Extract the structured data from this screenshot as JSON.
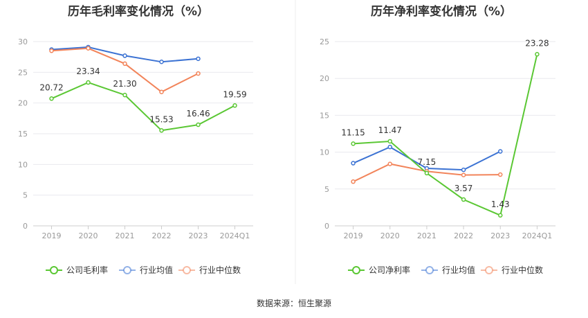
{
  "source": "数据来源：恒生聚源",
  "chart_data": [
    {
      "type": "line",
      "title": "历年毛利率变化情况（%）",
      "categories": [
        "2019",
        "2020",
        "2021",
        "2022",
        "2023",
        "2024Q1"
      ],
      "ylim": [
        0,
        30
      ],
      "yticks": [
        "0",
        "5",
        "10",
        "15",
        "20",
        "25",
        "30"
      ],
      "grid": true,
      "legend_position": "bottom",
      "series": [
        {
          "name": "公司毛利率",
          "color": "#5ac733",
          "values": [
            20.72,
            23.34,
            21.3,
            15.53,
            16.46,
            19.59
          ],
          "labels": [
            "20.72",
            "23.34",
            "21.30",
            "15.53",
            "16.46",
            "19.59"
          ]
        },
        {
          "name": "行业均值",
          "color": "#3b72d3",
          "values": [
            28.7,
            29.1,
            27.7,
            26.7,
            27.2,
            null
          ]
        },
        {
          "name": "行业中位数",
          "color": "#f2845a",
          "values": [
            28.5,
            28.9,
            26.4,
            21.8,
            24.8,
            null
          ]
        }
      ]
    },
    {
      "type": "line",
      "title": "历年净利率变化情况（%）",
      "categories": [
        "2019",
        "2020",
        "2021",
        "2022",
        "2023",
        "2024Q1"
      ],
      "ylim": [
        0,
        25
      ],
      "yticks": [
        "0",
        "5",
        "10",
        "15",
        "20",
        "25"
      ],
      "grid": true,
      "legend_position": "bottom",
      "series": [
        {
          "name": "公司净利率",
          "color": "#5ac733",
          "values": [
            11.15,
            11.47,
            7.15,
            3.57,
            1.43,
            23.28
          ],
          "labels": [
            "11.15",
            "11.47",
            "7.15",
            "3.57",
            "1.43",
            "23.28"
          ]
        },
        {
          "name": "行业均值",
          "color": "#3b72d3",
          "values": [
            8.5,
            10.7,
            7.8,
            7.6,
            10.1,
            null
          ]
        },
        {
          "name": "行业中位数",
          "color": "#f2845a",
          "values": [
            6.0,
            8.4,
            7.4,
            6.9,
            6.95,
            null
          ]
        }
      ]
    }
  ]
}
